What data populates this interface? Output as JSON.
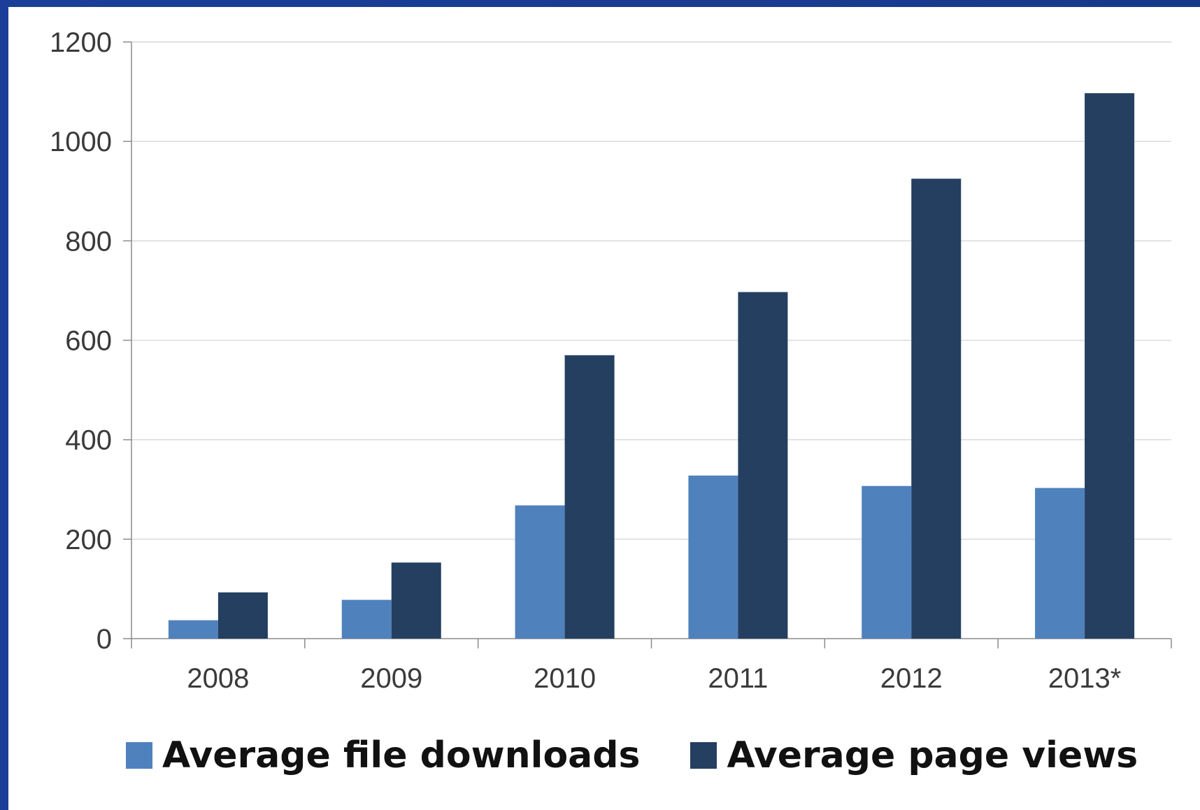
{
  "chart_data": {
    "type": "bar",
    "categories": [
      "2008",
      "2009",
      "2010",
      "2011",
      "2012",
      "2013*"
    ],
    "series": [
      {
        "name": "Average file downloads",
        "color": "#4f81bd",
        "values": [
          37,
          78,
          268,
          328,
          307,
          303
        ]
      },
      {
        "name": "Average page views",
        "color": "#243f60",
        "values": [
          93,
          153,
          570,
          697,
          925,
          1097
        ]
      }
    ],
    "yticks": [
      "0",
      "200",
      "400",
      "600",
      "800",
      "1000",
      "1200"
    ],
    "ylim": [
      0,
      1200
    ],
    "grid": true,
    "legend_position": "bottom",
    "title": "",
    "xlabel": "",
    "ylabel": ""
  }
}
